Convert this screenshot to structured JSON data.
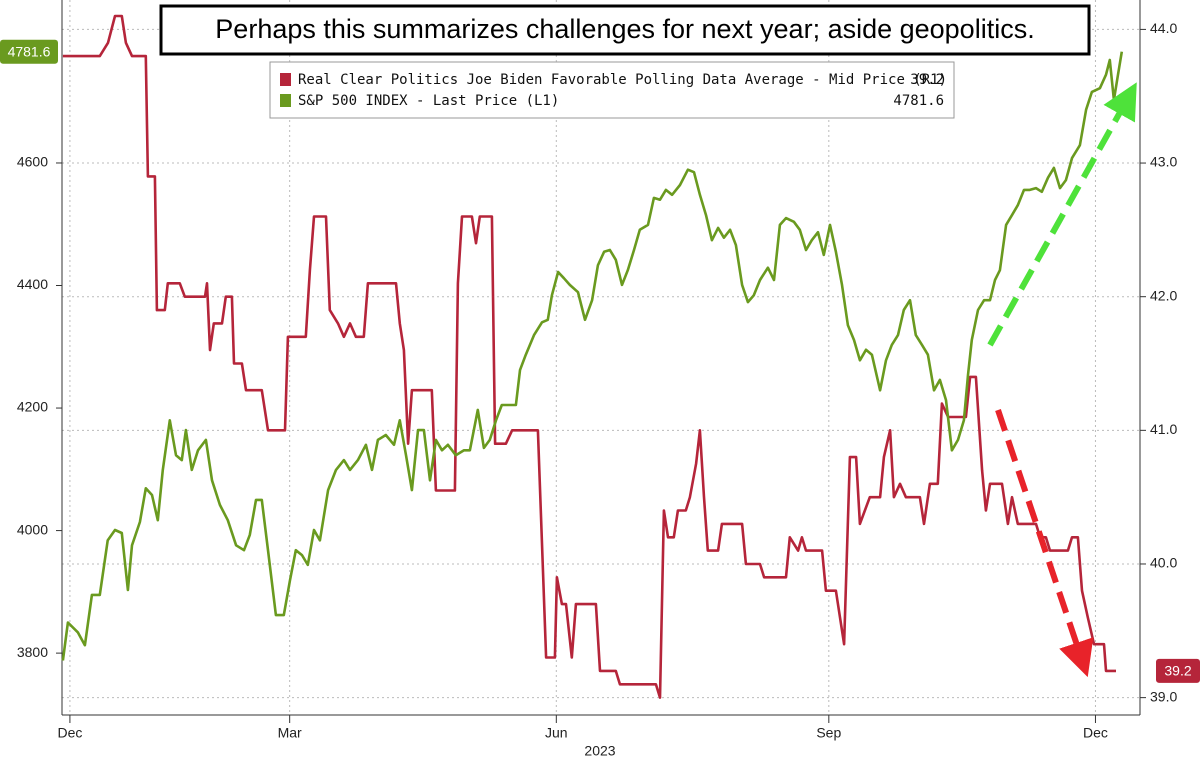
{
  "chart_data": {
    "type": "line",
    "title": "Perhaps this summarizes challenges for next year; aside geopolitics.",
    "year_label": "2023",
    "xlim": [
      -2.7,
      365.2
    ],
    "xticks": [
      {
        "value": 0,
        "label": "Dec"
      },
      {
        "value": 75,
        "label": "Mar"
      },
      {
        "value": 166,
        "label": "Jun"
      },
      {
        "value": 259,
        "label": "Sep"
      },
      {
        "value": 350,
        "label": "Dec"
      }
    ],
    "ylim": [
      3699,
      4866
    ],
    "yticks": [
      3800,
      4000,
      4200,
      4400,
      4600
    ],
    "y2lim": [
      38.87,
      44.22
    ],
    "y2ticks": [
      {
        "value": 39,
        "label": "39.0"
      },
      {
        "value": 40,
        "label": "40.0"
      },
      {
        "value": 41,
        "label": "41.0"
      },
      {
        "value": 42,
        "label": "42.0"
      },
      {
        "value": 43,
        "label": "43.0"
      },
      {
        "value": 44,
        "label": "44.0"
      }
    ],
    "grid": true,
    "series": [
      {
        "name": "Real Clear Politics Joe Biden Favorable Polling Data Average - Mid Price (R1)",
        "color": "#b5253a",
        "axis": "y2",
        "last_price": 39.2,
        "x": [
          -2.4,
          10.2,
          13.0,
          15.4,
          17.7,
          19.1,
          21.2,
          23.9,
          25.9,
          26.6,
          29.0,
          29.7,
          32.4,
          33.4,
          37.5,
          39.2,
          46.1,
          46.8,
          47.8,
          49.1,
          51.9,
          53.2,
          55.3,
          56.0,
          58.7,
          60.1,
          65.5,
          67.6,
          73.4,
          74.4,
          80.5,
          81.9,
          83.3,
          87.4,
          88.7,
          91.5,
          93.5,
          95.6,
          97.6,
          100.3,
          101.7,
          111.3,
          112.6,
          114.0,
          115.4,
          116.7,
          123.5,
          124.9,
          131.4,
          132.4,
          133.8,
          137.2,
          138.6,
          139.9,
          144.0,
          145.1,
          148.8,
          150.9,
          159.7,
          162.5,
          165.5,
          166.2,
          167.9,
          169.3,
          171.3,
          172.7,
          179.5,
          180.9,
          186.3,
          187.7,
          200.0,
          201.4,
          202.7,
          204.1,
          206.1,
          207.5,
          210.2,
          211.6,
          213.7,
          215.0,
          216.4,
          217.7,
          221.2,
          222.5,
          229.4,
          230.7,
          235.5,
          236.9,
          244.4,
          245.7,
          248.5,
          249.8,
          251.2,
          256.7,
          258.0,
          261.4,
          264.2,
          266.2,
          268.3,
          269.6,
          273.0,
          276.5,
          277.8,
          279.9,
          281.2,
          283.3,
          285.3,
          290.1,
          291.5,
          293.5,
          296.2,
          297.6,
          299.7,
          305.8,
          307.2,
          309.2,
          311.3,
          312.6,
          314.0,
          318.1,
          320.1,
          321.5,
          323.5,
          329.7,
          331.1,
          333.1,
          334.5,
          340.6,
          342.0,
          344.0,
          345.4,
          347.4,
          349.5,
          352.9,
          353.6,
          357.0
        ],
        "values": [
          43.8,
          43.8,
          43.9,
          44.1,
          44.1,
          43.9,
          43.8,
          43.8,
          43.8,
          42.9,
          42.9,
          41.9,
          41.9,
          42.1,
          42.1,
          42.0,
          42.0,
          42.1,
          41.6,
          41.8,
          41.8,
          42.0,
          42.0,
          41.5,
          41.5,
          41.3,
          41.3,
          41.0,
          41.0,
          41.7,
          41.7,
          42.2,
          42.6,
          42.6,
          41.9,
          41.8,
          41.7,
          41.8,
          41.7,
          41.7,
          42.1,
          42.1,
          41.8,
          41.6,
          40.9,
          41.3,
          41.3,
          40.55,
          40.55,
          42.1,
          42.6,
          42.6,
          42.4,
          42.6,
          42.6,
          40.9,
          40.9,
          41.0,
          41.0,
          39.3,
          39.3,
          39.9,
          39.7,
          39.7,
          39.3,
          39.7,
          39.7,
          39.2,
          39.2,
          39.1,
          39.1,
          39.0,
          40.4,
          40.2,
          40.2,
          40.4,
          40.4,
          40.5,
          40.75,
          41.0,
          40.5,
          40.1,
          40.1,
          40.3,
          40.3,
          40.0,
          40.0,
          39.9,
          39.9,
          40.2,
          40.1,
          40.2,
          40.1,
          40.1,
          39.8,
          39.8,
          39.4,
          40.8,
          40.8,
          40.3,
          40.5,
          40.5,
          40.8,
          41.0,
          40.5,
          40.6,
          40.5,
          40.5,
          40.3,
          40.6,
          40.6,
          41.2,
          41.1,
          41.1,
          41.4,
          41.4,
          40.7,
          40.4,
          40.6,
          40.6,
          40.3,
          40.5,
          40.3,
          40.3,
          40.2,
          40.2,
          40.1,
          40.1,
          40.2,
          40.2,
          39.8,
          39.6,
          39.4,
          39.4,
          39.2,
          39.2
        ]
      },
      {
        "name": "S&P 500 INDEX - Last Price (L1)",
        "color": "#6a9a1f",
        "axis": "y",
        "last_price": 4781.6,
        "x": [
          -2.4,
          -0.7,
          2.7,
          5.1,
          7.5,
          10.2,
          12.9,
          15.4,
          17.7,
          19.8,
          21.2,
          23.9,
          25.9,
          28.0,
          30.0,
          31.7,
          34.1,
          36.2,
          38.2,
          39.6,
          41.6,
          43.7,
          46.4,
          48.5,
          51.2,
          53.9,
          56.7,
          59.4,
          61.4,
          63.5,
          65.5,
          67.6,
          70.3,
          73.0,
          75.1,
          77.1,
          79.2,
          81.2,
          83.3,
          85.3,
          88.1,
          90.8,
          93.5,
          95.6,
          98.3,
          101.0,
          103.1,
          105.1,
          107.8,
          110.6,
          112.6,
          114.7,
          116.7,
          118.8,
          120.8,
          122.9,
          124.9,
          127.0,
          129.0,
          131.7,
          134.5,
          136.5,
          139.2,
          141.3,
          143.3,
          145.4,
          147.4,
          150.2,
          152.2,
          153.6,
          155.6,
          158.4,
          161.1,
          163.1,
          164.5,
          166.6,
          168.6,
          170.6,
          173.4,
          175.8,
          178.2,
          180.2,
          182.3,
          184.3,
          186.3,
          188.4,
          190.4,
          192.5,
          194.5,
          197.3,
          199.3,
          201.4,
          203.4,
          205.5,
          208.2,
          210.9,
          213.0,
          215.0,
          217.1,
          219.1,
          221.2,
          223.2,
          225.3,
          227.3,
          229.4,
          231.4,
          233.4,
          235.5,
          238.2,
          240.3,
          242.3,
          244.4,
          247.1,
          249.1,
          251.2,
          253.2,
          255.3,
          257.3,
          259.4,
          261.4,
          263.5,
          265.5,
          267.6,
          269.6,
          271.7,
          273.7,
          276.5,
          278.5,
          280.5,
          282.6,
          284.6,
          286.7,
          288.7,
          290.8,
          292.8,
          294.9,
          296.9,
          299.0,
          301.0,
          303.1,
          305.1,
          306.5,
          307.8,
          309.9,
          312.0,
          314.0,
          315.7,
          317.4,
          319.5,
          321.5,
          323.5,
          325.6,
          327.6,
          329.7,
          331.7,
          333.8,
          335.8,
          337.9,
          339.9,
          342.0,
          344.7,
          346.8,
          348.8,
          351.5,
          353.6,
          354.9,
          356.3,
          357.7,
          359.0
        ],
        "values": [
          3788,
          3850,
          3834,
          3813,
          3895,
          3895,
          3984,
          4001,
          3996,
          3903,
          3976,
          4014,
          4069,
          4058,
          4017,
          4099,
          4180,
          4123,
          4115,
          4164,
          4099,
          4131,
          4148,
          4082,
          4042,
          4017,
          3976,
          3968,
          3993,
          4050,
          4050,
          3968,
          3862,
          3862,
          3919,
          3968,
          3960,
          3944,
          4001,
          3984,
          4066,
          4099,
          4115,
          4099,
          4115,
          4140,
          4099,
          4148,
          4156,
          4140,
          4180,
          4123,
          4066,
          4164,
          4164,
          4082,
          4148,
          4131,
          4140,
          4123,
          4131,
          4131,
          4197,
          4135,
          4148,
          4180,
          4205,
          4205,
          4205,
          4262,
          4287,
          4319,
          4340,
          4344,
          4384,
          4422,
          4412,
          4401,
          4389,
          4344,
          4376,
          4433,
          4455,
          4458,
          4442,
          4401,
          4425,
          4458,
          4491,
          4499,
          4543,
          4540,
          4556,
          4548,
          4564,
          4589,
          4585,
          4548,
          4515,
          4474,
          4494,
          4478,
          4491,
          4466,
          4401,
          4373,
          4384,
          4409,
          4429,
          4409,
          4499,
          4510,
          4504,
          4491,
          4458,
          4474,
          4487,
          4450,
          4499,
          4455,
          4401,
          4335,
          4311,
          4278,
          4295,
          4287,
          4229,
          4278,
          4303,
          4319,
          4360,
          4376,
          4319,
          4303,
          4287,
          4229,
          4246,
          4213,
          4131,
          4148,
          4180,
          4254,
          4311,
          4360,
          4376,
          4376,
          4409,
          4425,
          4499,
          4515,
          4531,
          4556,
          4556,
          4559,
          4553,
          4576,
          4592,
          4559,
          4572,
          4608,
          4629,
          4687,
          4716,
          4722,
          4744,
          4768,
          4703,
          4744,
          4781.6
        ]
      }
    ]
  }
}
